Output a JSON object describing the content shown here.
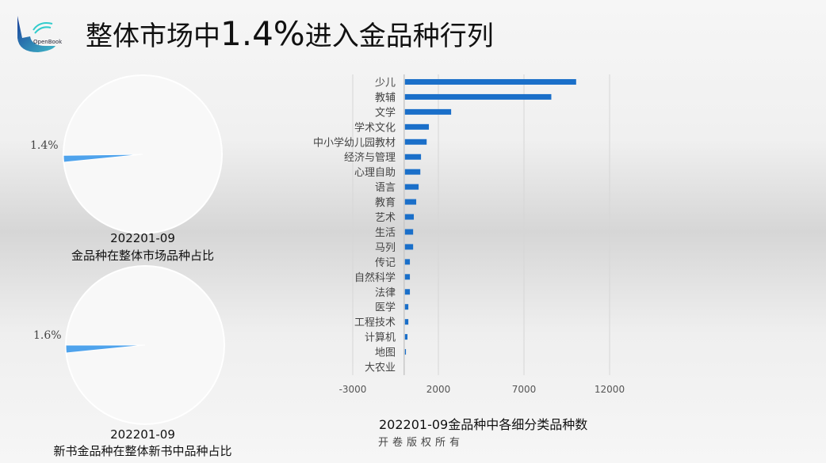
{
  "title": {
    "prefix": "整体市场中",
    "percent": "1.4%",
    "suffix": "进入金品种行列"
  },
  "logo": {
    "text": "OpenBook"
  },
  "pie1": {
    "value_label": "1.4%",
    "share": 1.4,
    "line1": "202201-09",
    "line2": "金品种在整体市场品种占比"
  },
  "pie2": {
    "value_label": "1.6%",
    "share": 1.6,
    "line1": "202201-09",
    "line2": "新书金品种在整体新书中品种占比"
  },
  "colors": {
    "bar": "#1a6fc9",
    "wedge": "#4fa3ec"
  },
  "chart_data": {
    "type": "bar",
    "orientation": "horizontal",
    "title": "202201-09金品种中各细分类品种数",
    "categories": [
      "少儿",
      "教辅",
      "文学",
      "学术文化",
      "中小学幼儿园教材",
      "经济与管理",
      "心理自助",
      "语言",
      "教育",
      "艺术",
      "生活",
      "马列",
      "传记",
      "自然科学",
      "法律",
      "医学",
      "工程技术",
      "计算机",
      "地图",
      "大农业"
    ],
    "values": [
      10000,
      8550,
      2700,
      1400,
      1270,
      940,
      900,
      800,
      660,
      520,
      480,
      480,
      290,
      290,
      290,
      200,
      200,
      150,
      60,
      0
    ],
    "xlim": [
      -3000,
      12000
    ],
    "xticks": [
      "-3000",
      "2000",
      "7000",
      "12000"
    ],
    "grid": true
  },
  "footer": {
    "copyright": "开卷版权所有"
  }
}
